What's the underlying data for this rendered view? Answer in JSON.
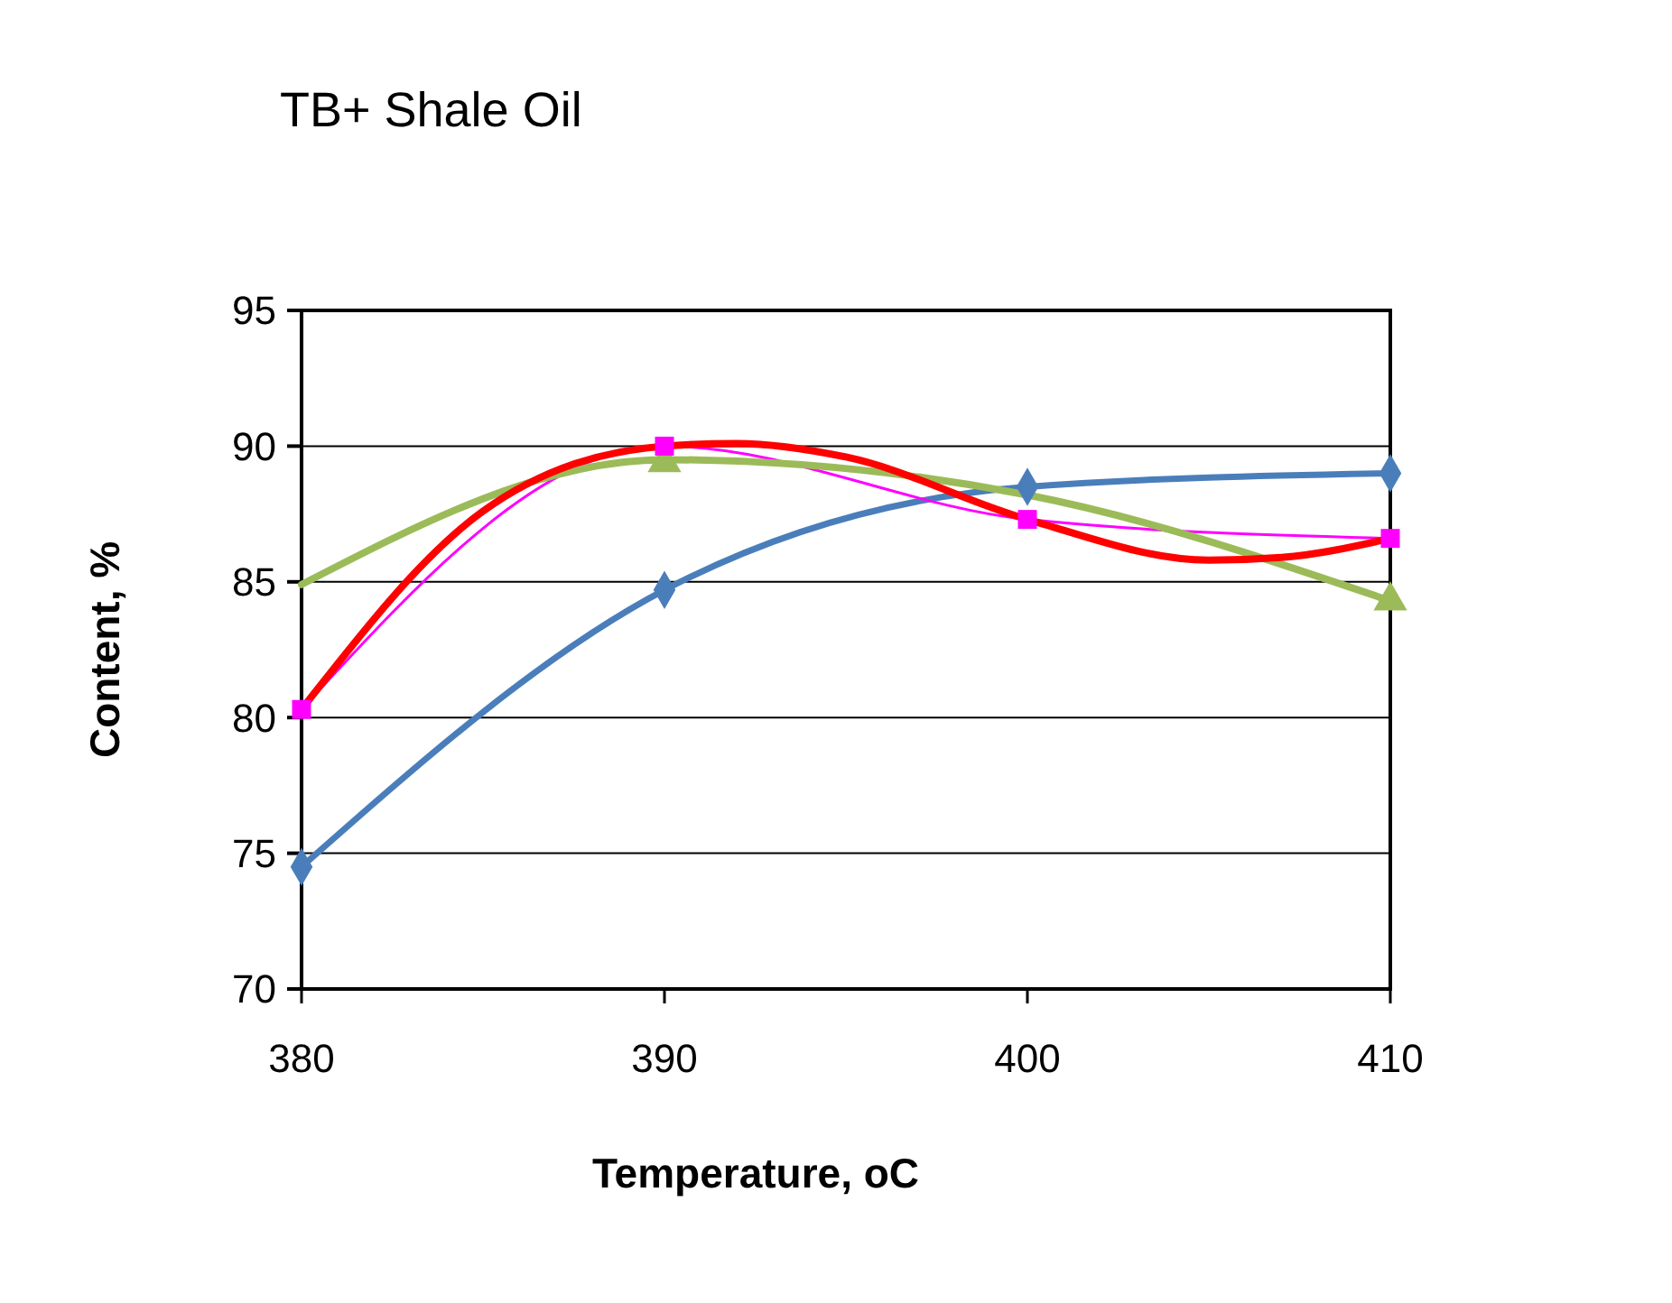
{
  "chart_data": {
    "type": "line",
    "title": "TB+ Shale Oil",
    "xlabel": "Temperature, oC",
    "ylabel": "Content, %",
    "xlim": [
      380,
      410
    ],
    "xticks": [
      380,
      390,
      400,
      410
    ],
    "ylim": [
      70,
      95
    ],
    "yticks": [
      70,
      75,
      80,
      85,
      90,
      95
    ],
    "grid": "y",
    "series": [
      {
        "color": "#4a7ebb",
        "marker": "diamond",
        "x": [
          380,
          390,
          400,
          410
        ],
        "values": [
          74.5,
          84.7,
          88.5,
          89.0
        ]
      },
      {
        "color": "#ff00ff",
        "marker": "square",
        "x": [
          380,
          390,
          400,
          410
        ],
        "values": [
          80.3,
          90.0,
          87.3,
          86.6
        ]
      },
      {
        "color": "#9bbb59",
        "marker": "none",
        "x": [
          380,
          390,
          400,
          410
        ],
        "values": [
          84.9,
          89.5,
          88.2,
          84.3
        ]
      },
      {
        "type": "scatter",
        "color": "#9bbb59",
        "marker": "triangle",
        "x": [
          390,
          410
        ],
        "values": [
          89.4,
          84.3
        ]
      },
      {
        "color": "#ff0000",
        "marker": "none",
        "x": [
          380,
          385,
          390,
          392,
          395,
          400,
          405,
          407,
          410
        ],
        "values": [
          80.3,
          87.6,
          90.0,
          90.1,
          89.6,
          87.3,
          85.8,
          85.9,
          86.6
        ]
      }
    ]
  }
}
